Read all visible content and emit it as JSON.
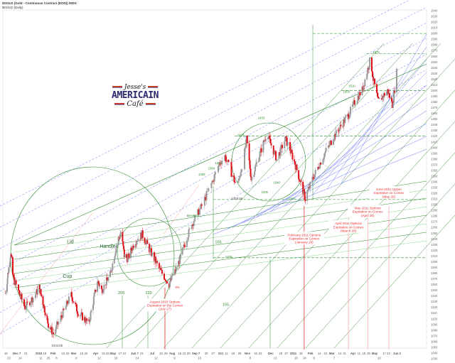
{
  "header": {
    "title": "$GOLD (Gold - Continuous Contract (EOD)) INDX",
    "subtitle": "$GOLD (Daily)"
  },
  "logo": {
    "line1": "Jesse's",
    "line2": "AMERICAIN",
    "line3": "Café"
  },
  "colors": {
    "up": "#9a9a9a",
    "down": "#e0101a",
    "green": "#2e8b2e",
    "lightgreen": "#8fd18f",
    "blue": "#5b6cf0",
    "red": "#e8302f",
    "pink": "#f4a0a0"
  },
  "chart_data": {
    "type": "candlestick",
    "title": "$GOLD (Gold - Continuous Contract (EOD)) INDX",
    "ylim": [
      1030,
      1640
    ],
    "grid": false,
    "y_ticks": [
      1640,
      1630,
      1620,
      1610,
      1600,
      1590,
      1580,
      1570,
      1560,
      1550,
      1540,
      1530,
      1520,
      1510,
      1500,
      1490,
      1480,
      1470,
      1460,
      1450,
      1440,
      1430,
      1420,
      1410,
      1400,
      1390,
      1380,
      1370,
      1360,
      1350,
      1340,
      1330,
      1320,
      1310,
      1300,
      1290,
      1280,
      1270,
      1260,
      1250,
      1240,
      1230,
      1220,
      1210,
      1200,
      1190,
      1180,
      1170,
      1160,
      1150,
      1140,
      1130,
      1120,
      1110,
      1100,
      1090,
      1080,
      1070,
      1060,
      1050,
      1040,
      1030
    ],
    "x_ticks": [
      [
        "16",
        "2009-11-16"
      ],
      [
        "23",
        "2009-11-23"
      ],
      [
        "Dec 7",
        "2009-12-07"
      ],
      [
        "14",
        "2009-12-14"
      ],
      [
        "21",
        "2009-12-21"
      ],
      [
        "2010",
        "2010-01-04"
      ],
      [
        "11",
        "2010-01-11"
      ],
      [
        "18",
        "2010-01-18"
      ],
      [
        "25",
        "2010-01-25"
      ],
      [
        "Feb",
        "2010-02-01"
      ],
      [
        "8",
        "2010-02-08"
      ],
      [
        "16",
        "2010-02-16"
      ],
      [
        "22",
        "2010-02-22"
      ],
      [
        "Mar",
        "2010-03-01"
      ],
      [
        "8",
        "2010-03-08"
      ],
      [
        "15",
        "2010-03-15"
      ],
      [
        "22",
        "2010-03-22"
      ],
      [
        "Apr",
        "2010-04-05"
      ],
      [
        "12",
        "2010-04-12"
      ],
      [
        "19",
        "2010-04-19"
      ],
      [
        "26",
        "2010-04-26"
      ],
      [
        "May",
        "2010-05-03"
      ],
      [
        "10",
        "2010-05-10"
      ],
      [
        "17",
        "2010-05-17"
      ],
      [
        "24",
        "2010-05-24"
      ],
      [
        "Jun 7",
        "2010-06-07"
      ],
      [
        "14",
        "2010-06-14"
      ],
      [
        "21",
        "2010-06-21"
      ],
      [
        "Jul",
        "2010-07-06"
      ],
      [
        "12",
        "2010-07-12"
      ],
      [
        "19",
        "2010-07-19"
      ],
      [
        "26",
        "2010-07-26"
      ],
      [
        "Aug",
        "2010-08-02"
      ],
      [
        "9",
        "2010-08-09"
      ],
      [
        "16",
        "2010-08-16"
      ],
      [
        "23",
        "2010-08-23"
      ],
      [
        "30",
        "2010-08-30"
      ],
      [
        "Sep 7",
        "2010-09-07"
      ],
      [
        "13",
        "2010-09-13"
      ],
      [
        "20",
        "2010-09-20"
      ],
      [
        "27",
        "2010-09-27"
      ],
      [
        "Oct",
        "2010-10-04"
      ],
      [
        "11",
        "2010-10-11"
      ],
      [
        "18",
        "2010-10-18"
      ],
      [
        "25",
        "2010-10-25"
      ],
      [
        "Nov",
        "2010-11-01"
      ],
      [
        "8",
        "2010-11-08"
      ],
      [
        "15",
        "2010-11-15"
      ],
      [
        "22",
        "2010-11-22"
      ],
      [
        "Dec",
        "2010-12-06"
      ],
      [
        "13",
        "2010-12-13"
      ],
      [
        "20",
        "2010-12-20"
      ],
      [
        "27",
        "2010-12-27"
      ],
      [
        "2011",
        "2011-01-03"
      ],
      [
        "10",
        "2011-01-10"
      ],
      [
        "18",
        "2011-01-18"
      ],
      [
        "24",
        "2011-01-24"
      ],
      [
        "Feb",
        "2011-02-01"
      ],
      [
        "8",
        "2011-02-08"
      ],
      [
        "14",
        "2011-02-14"
      ],
      [
        "22",
        "2011-02-22"
      ],
      [
        "Mar",
        "2011-03-01"
      ],
      [
        "7",
        "2011-03-07"
      ],
      [
        "14",
        "2011-03-14"
      ],
      [
        "21",
        "2011-03-21"
      ],
      [
        "Apr",
        "2011-04-01"
      ],
      [
        "11",
        "2011-04-11"
      ],
      [
        "18",
        "2011-04-18"
      ],
      [
        "25",
        "2011-04-25"
      ],
      [
        "May",
        "2011-05-02"
      ],
      [
        "10",
        "2011-05-10"
      ],
      [
        "17",
        "2011-05-17"
      ],
      [
        "23",
        "2011-05-23"
      ],
      [
        "Jun 1",
        "2011-06-01"
      ]
    ],
    "price_path": [
      [
        "2009-11-19",
        1145
      ],
      [
        "2009-12-02",
        1217
      ],
      [
        "2009-12-08",
        1169
      ],
      [
        "2009-12-22",
        1120
      ],
      [
        "2010-01-11",
        1155
      ],
      [
        "2010-01-28",
        1090
      ],
      [
        "2010-02-05",
        1074
      ],
      [
        "2010-03-01",
        1142
      ],
      [
        "2010-03-12",
        1111
      ],
      [
        "2010-03-29",
        1092
      ],
      [
        "2010-04-12",
        1167
      ],
      [
        "2010-04-19",
        1150
      ],
      [
        "2010-05-03",
        1177
      ],
      [
        "2010-05-15",
        1235
      ],
      [
        "2010-05-21",
        1252
      ],
      [
        "2010-05-27",
        1211
      ],
      [
        "2010-06-02",
        1205
      ],
      [
        "2010-06-13",
        1235
      ],
      [
        "2010-06-24",
        1248
      ],
      [
        "2010-07-10",
        1210
      ],
      [
        "2010-07-20",
        1185
      ],
      [
        "2010-08-02",
        1161
      ],
      [
        "2010-08-15",
        1192
      ],
      [
        "2010-09-01",
        1248
      ],
      [
        "2010-09-17",
        1298
      ],
      [
        "2010-09-28",
        1341
      ],
      [
        "2010-10-05",
        1372
      ],
      [
        "2010-10-11",
        1385
      ],
      [
        "2010-10-24",
        1330
      ],
      [
        "2010-11-04",
        1415
      ],
      [
        "2010-11-11",
        1345
      ],
      [
        "2010-12-04",
        1425
      ],
      [
        "2010-12-17",
        1380
      ],
      [
        "2010-12-28",
        1415
      ],
      [
        "2011-01-11",
        1372
      ],
      [
        "2011-01-28",
        1310
      ],
      [
        "2011-02-08",
        1348
      ],
      [
        "2011-02-23",
        1390
      ],
      [
        "2011-03-08",
        1420
      ],
      [
        "2011-03-18",
        1438
      ],
      [
        "2011-03-29",
        1457
      ],
      [
        "2011-04-08",
        1482
      ],
      [
        "2011-04-18",
        1501
      ],
      [
        "2011-04-30",
        1556
      ],
      [
        "2011-05-04",
        1520
      ],
      [
        "2011-05-11",
        1480
      ],
      [
        "2011-05-24",
        1500
      ],
      [
        "2011-05-31",
        1475
      ],
      [
        "2011-06-06",
        1532
      ]
    ],
    "annotations": [
      {
        "text": "Lid",
        "date": "2010-02-28",
        "price": 1232,
        "color": "#2e6b2e",
        "size": "big"
      },
      {
        "text": "Handle",
        "date": "2010-04-29",
        "price": 1224,
        "color": "#2e6b2e",
        "size": "big"
      },
      {
        "text": "Cup",
        "date": "2010-02-24",
        "price": 1172,
        "color": "#2e6b2e",
        "size": "big"
      },
      {
        "text": "Breakout",
        "date": "2010-09-08",
        "price": 1279,
        "color": "#2e8b2e"
      },
      {
        "text": "1044.50",
        "date": "2010-02-10",
        "price": 1051,
        "color": "#444"
      },
      {
        "text": "1425",
        "date": "2010-10-28",
        "price": 1420,
        "color": "#2e8b2e"
      },
      {
        "text": "1433",
        "date": "2010-11-26",
        "price": 1450,
        "color": "#2e8b2e"
      },
      {
        "text": "1372",
        "date": "2010-10-04",
        "price": 1371,
        "color": "#2e8b2e"
      },
      {
        "text": "1364",
        "date": "2010-09-27",
        "price": 1362,
        "color": "#2e8b2e"
      },
      {
        "text": "1353",
        "date": "2010-09-17",
        "price": 1351,
        "color": "#2e8b2e"
      },
      {
        "text": "1340",
        "date": "2010-12-17",
        "price": 1337,
        "color": "#2e8b2e"
      },
      {
        "text": "1330",
        "date": "2010-12-01",
        "price": 1320,
        "color": "#2e8b2e"
      },
      {
        "text": "1310",
        "date": "2011-01-06",
        "price": 1309,
        "color": "#2e8b2e"
      },
      {
        "text": "1318.50",
        "date": "2010-10-24",
        "price": 1309,
        "color": "#444"
      },
      {
        "text": "1510",
        "date": "2011-04-03",
        "price": 1506,
        "color": "#2e8b2e"
      },
      {
        "text": "1500",
        "date": "2011-03-26",
        "price": 1496,
        "color": "#2e8b2e"
      },
      {
        "text": "1575",
        "date": "2011-05-08",
        "price": 1565,
        "color": "#2e8b2e"
      },
      {
        "text": "1200",
        "date": "2010-10-15",
        "price": 1207,
        "color": "#2e8b2e"
      },
      {
        "text": "155",
        "date": "2010-10-04",
        "price": 1232,
        "color": "#2e8b2e",
        "size": "mid"
      },
      {
        "text": "155",
        "date": "2010-10-12",
        "price": 1123,
        "color": "#2e8b2e",
        "size": "mid"
      },
      {
        "text": "205",
        "date": "2010-05-22",
        "price": 1143,
        "color": "#2e8b2e",
        "size": "mid"
      },
      {
        "text": "220",
        "date": "2010-07-04",
        "price": 1143,
        "color": "#2e8b2e",
        "size": "mid"
      },
      {
        "text": "8%",
        "date": "2010-08-15",
        "price": 1153,
        "color": "#e8302f"
      }
    ],
    "expirations": [
      {
        "date": "2010-07-27",
        "lines": [
          "August 2010 Options",
          "Expiration on the Comex",
          "(July 27)"
        ],
        "text_price": 1128
      },
      {
        "date": "2011-01-26",
        "lines": [
          "February 2011 Options",
          "Expiration on Comex",
          "(January 26)"
        ],
        "text_price": 1245
      },
      {
        "date": "2011-03-29",
        "lines": [
          "April 2011 Options",
          "Expiration on Comex",
          "(March 29)"
        ],
        "text_price": 1265
      },
      {
        "date": "2011-04-26",
        "lines": [
          "May 2011 Options",
          "Expiration on Comex",
          "(April 26)"
        ],
        "text_price": 1292
      },
      {
        "date": "2011-05-26",
        "lines": [
          "June 2011 Option",
          "Expiration on Comex",
          "(May 26)"
        ],
        "text_price": 1325
      }
    ]
  }
}
